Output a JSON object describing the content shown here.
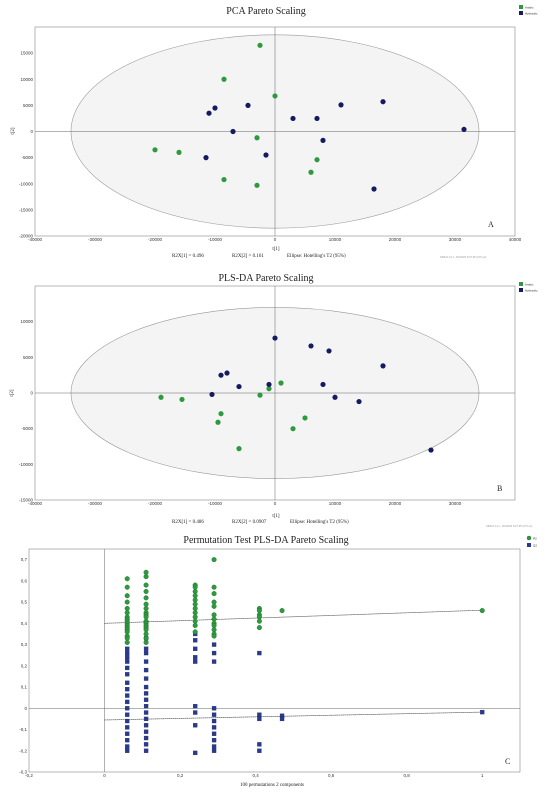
{
  "colors": {
    "green": "#2e9a3e",
    "navy": "#151b5e",
    "blue": "#2a3a8c",
    "frame": "#888888"
  },
  "chart_data": [
    {
      "type": "scatter",
      "title": "PCA Pareto Scaling",
      "xlabel": "t[1]",
      "ylabel": "t[2]",
      "xlim": [
        -40000,
        40000
      ],
      "ylim": [
        -20000,
        20000
      ],
      "xticks": [
        "-40000",
        "-30000",
        "-20000",
        "-10000",
        "0",
        "10000",
        "20000",
        "30000",
        "40000"
      ],
      "yticks": [
        "15000",
        "10000",
        "5000",
        "0",
        "-5000",
        "-10000",
        "-15000",
        "-20000"
      ],
      "legend": [
        "Arabic",
        "Hydraulic"
      ],
      "footer": [
        "R2X[1] = 0.496",
        "R2X[2] = 0.161",
        "Ellipse: Hotelling's T2 (95%)"
      ],
      "panel_label": "A",
      "watermark": "SIMCA 14.1 - 8/4/2023 8:27:35 (UTC+2)",
      "ellipse": {
        "rx": 34000,
        "ry": 18500
      },
      "series": [
        {
          "name": "Arabic",
          "color": "green",
          "points": [
            [
              -2500,
              16500
            ],
            [
              -8500,
              10000
            ],
            [
              0,
              6800
            ],
            [
              -3000,
              -1200
            ],
            [
              -20000,
              -3500
            ],
            [
              -16000,
              -4000
            ],
            [
              7000,
              -5400
            ],
            [
              6000,
              -7800
            ],
            [
              -8500,
              -9200
            ],
            [
              -3000,
              -10300
            ]
          ]
        },
        {
          "name": "Hydraulic",
          "color": "navy",
          "points": [
            [
              -10000,
              4500
            ],
            [
              -11000,
              3500
            ],
            [
              -4500,
              5000
            ],
            [
              3000,
              2500
            ],
            [
              7000,
              2500
            ],
            [
              11000,
              5100
            ],
            [
              18000,
              5700
            ],
            [
              31500,
              400
            ],
            [
              -7000,
              0
            ],
            [
              8000,
              -1700
            ],
            [
              -11500,
              -5000
            ],
            [
              -1500,
              -4500
            ],
            [
              16500,
              -11000
            ]
          ]
        }
      ]
    },
    {
      "type": "scatter",
      "title": "PLS-DA Pareto Scaling",
      "xlabel": "t[1]",
      "ylabel": "t[2]",
      "xlim": [
        -40000,
        40000
      ],
      "ylim": [
        -15000,
        15000
      ],
      "xticks": [
        "-40000",
        "-30000",
        "-20000",
        "-10000",
        "0",
        "10000",
        "20000",
        "30000"
      ],
      "yticks": [
        "10000",
        "5000",
        "0",
        "-5000",
        "-10000",
        "-15000"
      ],
      "legend": [
        "Arabic",
        "Hydraulic"
      ],
      "footer": [
        "R2X[1] = 0.486",
        "R2X[2] = 0.0907",
        "Ellipse: Hotelling's T2 (95%)"
      ],
      "panel_label": "B",
      "watermark": "SIMCA 14.1 - 8/4/2023 8:27:35 (UTC+2)",
      "ellipse": {
        "rx": 34000,
        "ry": 12000
      },
      "series": [
        {
          "name": "Arabic",
          "color": "green",
          "points": [
            [
              -19000,
              -600
            ],
            [
              -15500,
              -900
            ],
            [
              -9000,
              -2900
            ],
            [
              -9500,
              -4100
            ],
            [
              -2500,
              -300
            ],
            [
              -1000,
              600
            ],
            [
              1000,
              1400
            ],
            [
              5000,
              -3500
            ],
            [
              3000,
              -5000
            ],
            [
              -6000,
              -7800
            ]
          ]
        },
        {
          "name": "Hydraulic",
          "color": "navy",
          "points": [
            [
              -9000,
              2500
            ],
            [
              -8000,
              2800
            ],
            [
              -6000,
              900
            ],
            [
              -10500,
              -200
            ],
            [
              0,
              7700
            ],
            [
              6000,
              6600
            ],
            [
              9000,
              5900
            ],
            [
              18000,
              3800
            ],
            [
              8000,
              1200
            ],
            [
              -1000,
              1200
            ],
            [
              10000,
              -600
            ],
            [
              14000,
              -1200
            ],
            [
              26000,
              -8000
            ]
          ]
        }
      ]
    },
    {
      "type": "scatter",
      "title": "Permutation Test PLS-DA Pareto Scaling",
      "xlabel": "100 permutations 2 components",
      "xlim": [
        -0.2,
        1.1
      ],
      "ylim": [
        -0.3,
        0.75
      ],
      "xticks": [
        "-0,2",
        "0",
        "0,2",
        "0,4",
        "0,6",
        "0,8",
        "1"
      ],
      "yticks": [
        "0,7",
        "0,6",
        "0,5",
        "0,4",
        "0,3",
        "0,2",
        "0,1",
        "0",
        "-0,1",
        "-0,2",
        "-0,3"
      ],
      "legend": [
        "R2",
        "Q2"
      ],
      "panel_label": "C",
      "r2_intercept_line": [
        [
          0,
          0.4
        ],
        [
          1,
          0.462
        ]
      ],
      "q2_intercept_line": [
        [
          0,
          -0.055
        ],
        [
          1,
          -0.018
        ]
      ],
      "series": [
        {
          "name": "R2",
          "color": "green",
          "points": [
            [
              0.06,
              0.61
            ],
            [
              0.06,
              0.57
            ],
            [
              0.06,
              0.53
            ],
            [
              0.06,
              0.5
            ],
            [
              0.06,
              0.47
            ],
            [
              0.06,
              0.45
            ],
            [
              0.06,
              0.43
            ],
            [
              0.06,
              0.42
            ],
            [
              0.06,
              0.41
            ],
            [
              0.06,
              0.4
            ],
            [
              0.06,
              0.39
            ],
            [
              0.06,
              0.38
            ],
            [
              0.06,
              0.37
            ],
            [
              0.06,
              0.36
            ],
            [
              0.06,
              0.34
            ],
            [
              0.06,
              0.33
            ],
            [
              0.06,
              0.31
            ],
            [
              0.11,
              0.64
            ],
            [
              0.11,
              0.62
            ],
            [
              0.11,
              0.58
            ],
            [
              0.11,
              0.55
            ],
            [
              0.11,
              0.52
            ],
            [
              0.11,
              0.49
            ],
            [
              0.11,
              0.47
            ],
            [
              0.11,
              0.45
            ],
            [
              0.11,
              0.44
            ],
            [
              0.11,
              0.43
            ],
            [
              0.11,
              0.41
            ],
            [
              0.11,
              0.4
            ],
            [
              0.11,
              0.39
            ],
            [
              0.11,
              0.38
            ],
            [
              0.11,
              0.37
            ],
            [
              0.11,
              0.35
            ],
            [
              0.11,
              0.33
            ],
            [
              0.11,
              0.31
            ],
            [
              0.24,
              0.58
            ],
            [
              0.24,
              0.57
            ],
            [
              0.24,
              0.55
            ],
            [
              0.24,
              0.53
            ],
            [
              0.24,
              0.51
            ],
            [
              0.24,
              0.49
            ],
            [
              0.24,
              0.47
            ],
            [
              0.24,
              0.45
            ],
            [
              0.24,
              0.43
            ],
            [
              0.24,
              0.41
            ],
            [
              0.24,
              0.39
            ],
            [
              0.24,
              0.36
            ],
            [
              0.29,
              0.7
            ],
            [
              0.29,
              0.57
            ],
            [
              0.29,
              0.54
            ],
            [
              0.29,
              0.5
            ],
            [
              0.29,
              0.48
            ],
            [
              0.29,
              0.44
            ],
            [
              0.29,
              0.42
            ],
            [
              0.29,
              0.4
            ],
            [
              0.29,
              0.39
            ],
            [
              0.29,
              0.37
            ],
            [
              0.29,
              0.35
            ],
            [
              0.29,
              0.34
            ],
            [
              0.41,
              0.47
            ],
            [
              0.41,
              0.46
            ],
            [
              0.41,
              0.44
            ],
            [
              0.41,
              0.43
            ],
            [
              0.41,
              0.41
            ],
            [
              0.41,
              0.38
            ],
            [
              0.47,
              0.46
            ],
            [
              1.0,
              0.46
            ]
          ]
        },
        {
          "name": "Q2",
          "color": "blue",
          "points": [
            [
              0.06,
              0.28
            ],
            [
              0.06,
              0.26
            ],
            [
              0.06,
              0.24
            ],
            [
              0.06,
              0.22
            ],
            [
              0.06,
              0.19
            ],
            [
              0.06,
              0.16
            ],
            [
              0.06,
              0.12
            ],
            [
              0.06,
              0.09
            ],
            [
              0.06,
              0.06
            ],
            [
              0.06,
              0.03
            ],
            [
              0.06,
              0.0
            ],
            [
              0.06,
              -0.03
            ],
            [
              0.06,
              -0.06
            ],
            [
              0.06,
              -0.09
            ],
            [
              0.06,
              -0.12
            ],
            [
              0.06,
              -0.15
            ],
            [
              0.06,
              -0.18
            ],
            [
              0.06,
              -0.2
            ],
            [
              0.11,
              0.33
            ],
            [
              0.11,
              0.28
            ],
            [
              0.11,
              0.26
            ],
            [
              0.11,
              0.22
            ],
            [
              0.11,
              0.18
            ],
            [
              0.11,
              0.14
            ],
            [
              0.11,
              0.1
            ],
            [
              0.11,
              0.07
            ],
            [
              0.11,
              0.04
            ],
            [
              0.11,
              0.01
            ],
            [
              0.11,
              -0.02
            ],
            [
              0.11,
              -0.05
            ],
            [
              0.11,
              -0.08
            ],
            [
              0.11,
              -0.11
            ],
            [
              0.11,
              -0.14
            ],
            [
              0.11,
              -0.17
            ],
            [
              0.11,
              -0.2
            ],
            [
              0.24,
              0.35
            ],
            [
              0.24,
              0.32
            ],
            [
              0.24,
              0.28
            ],
            [
              0.24,
              0.24
            ],
            [
              0.24,
              0.22
            ],
            [
              0.24,
              0.01
            ],
            [
              0.24,
              -0.02
            ],
            [
              0.24,
              -0.08
            ],
            [
              0.24,
              -0.21
            ],
            [
              0.29,
              0.3
            ],
            [
              0.29,
              0.26
            ],
            [
              0.29,
              0.22
            ],
            [
              0.29,
              0.0
            ],
            [
              0.29,
              -0.03
            ],
            [
              0.29,
              -0.06
            ],
            [
              0.29,
              -0.09
            ],
            [
              0.29,
              -0.12
            ],
            [
              0.29,
              -0.15
            ],
            [
              0.29,
              -0.18
            ],
            [
              0.29,
              -0.2
            ],
            [
              0.41,
              0.26
            ],
            [
              0.41,
              -0.03
            ],
            [
              0.41,
              -0.05
            ],
            [
              0.41,
              -0.17
            ],
            [
              0.41,
              -0.2
            ],
            [
              0.47,
              -0.035
            ],
            [
              0.47,
              -0.05
            ],
            [
              1.0,
              -0.018
            ]
          ]
        }
      ]
    }
  ]
}
